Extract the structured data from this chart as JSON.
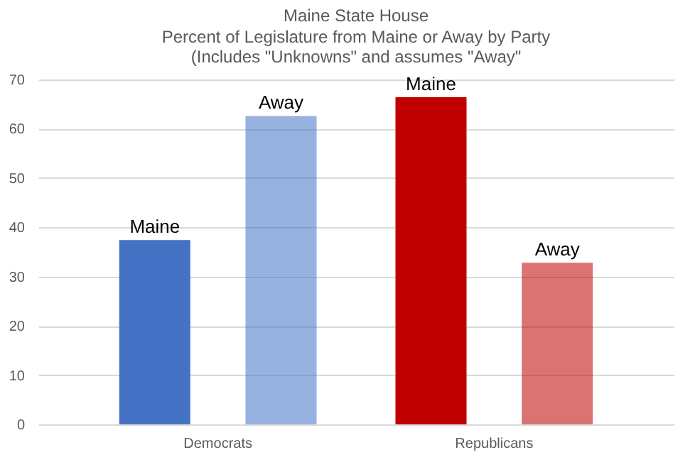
{
  "chart_data": {
    "type": "bar",
    "title": "Maine State House",
    "subtitle": "Percent of Legislature from Maine or Away by Party\n(Includes \"Unknowns\" and assumes \"Away\"",
    "categories": [
      "Democrats",
      "Republicans"
    ],
    "series": [
      {
        "name": "Maine",
        "colors": [
          "#4472c4",
          "#c00000"
        ],
        "values": [
          37.4,
          66.4
        ]
      },
      {
        "name": "Away",
        "colors": [
          "#4472c4",
          "#c00000"
        ],
        "values": [
          62.6,
          32.8
        ]
      }
    ],
    "ylim": [
      0,
      70
    ],
    "yticks": [
      0,
      10,
      20,
      30,
      40,
      50,
      60,
      70
    ],
    "grid": "y",
    "legend": false
  }
}
